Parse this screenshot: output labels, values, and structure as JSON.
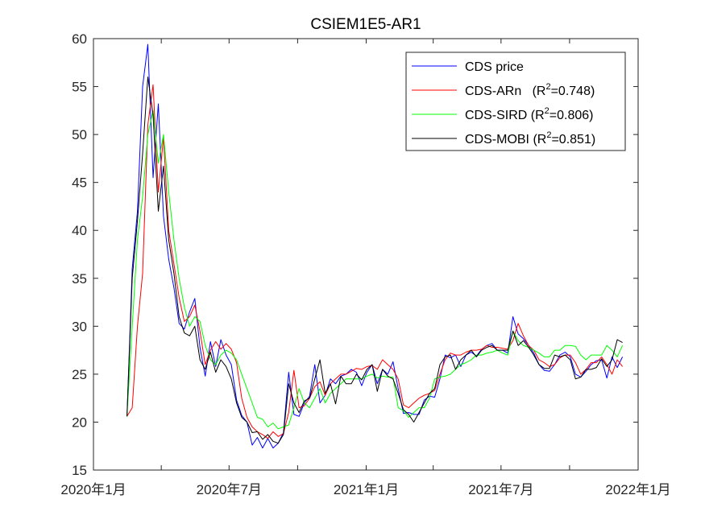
{
  "chart_data": {
    "type": "line",
    "title": "CSIEM1E5-AR1",
    "xlabel": "",
    "ylabel": "",
    "ylim": [
      15,
      60
    ],
    "yticks": [
      15,
      20,
      25,
      30,
      35,
      40,
      45,
      50,
      55,
      60
    ],
    "xlim": [
      "2020-01-01",
      "2022-01-01"
    ],
    "xtick_labels": [
      "2020年1月",
      "2020年7月",
      "2021年1月",
      "2021年7月",
      "2022年1月"
    ],
    "xtick_dates": [
      "2020-01-01",
      "2020-04-01",
      "2020-07-01",
      "2020-10-01",
      "2021-01-01",
      "2021-04-01",
      "2021-07-01",
      "2021-10-01",
      "2022-01-01"
    ],
    "grid": false,
    "legend_position": "top-right",
    "x": [
      "2020-02-15",
      "2020-02-22",
      "2020-02-29",
      "2020-03-07",
      "2020-03-14",
      "2020-03-21",
      "2020-03-28",
      "2020-04-04",
      "2020-04-11",
      "2020-04-18",
      "2020-04-25",
      "2020-05-02",
      "2020-05-09",
      "2020-05-16",
      "2020-05-23",
      "2020-05-30",
      "2020-06-06",
      "2020-06-13",
      "2020-06-20",
      "2020-06-27",
      "2020-07-04",
      "2020-07-11",
      "2020-07-18",
      "2020-07-25",
      "2020-08-01",
      "2020-08-08",
      "2020-08-15",
      "2020-08-22",
      "2020-08-29",
      "2020-09-05",
      "2020-09-12",
      "2020-09-19",
      "2020-09-26",
      "2020-10-03",
      "2020-10-10",
      "2020-10-17",
      "2020-10-24",
      "2020-10-31",
      "2020-11-07",
      "2020-11-14",
      "2020-11-21",
      "2020-11-28",
      "2020-12-05",
      "2020-12-12",
      "2020-12-19",
      "2020-12-26",
      "2021-01-02",
      "2021-01-09",
      "2021-01-16",
      "2021-01-23",
      "2021-01-30",
      "2021-02-06",
      "2021-02-13",
      "2021-02-20",
      "2021-02-27",
      "2021-03-06",
      "2021-03-13",
      "2021-03-20",
      "2021-03-27",
      "2021-04-03",
      "2021-04-10",
      "2021-04-17",
      "2021-04-24",
      "2021-05-01",
      "2021-05-08",
      "2021-05-15",
      "2021-05-22",
      "2021-05-29",
      "2021-06-05",
      "2021-06-12",
      "2021-06-19",
      "2021-06-26",
      "2021-07-03",
      "2021-07-10",
      "2021-07-17",
      "2021-07-24",
      "2021-07-31",
      "2021-08-07",
      "2021-08-14",
      "2021-08-21",
      "2021-08-28",
      "2021-09-04",
      "2021-09-11",
      "2021-09-18",
      "2021-09-25",
      "2021-10-02",
      "2021-10-09",
      "2021-10-16",
      "2021-10-23",
      "2021-10-30",
      "2021-11-06",
      "2021-11-13",
      "2021-11-20",
      "2021-11-27",
      "2021-12-04",
      "2021-12-11"
    ],
    "series": [
      {
        "name": "CDS price",
        "color": "#0000ff",
        "values": [
          20.6,
          36.0,
          42.0,
          55.0,
          59.4,
          45.5,
          53.2,
          41.5,
          37.0,
          34.0,
          30.3,
          29.7,
          31.5,
          32.9,
          27.8,
          24.8,
          28.4,
          25.8,
          28.6,
          27.0,
          26.0,
          22.3,
          20.7,
          20.0,
          17.6,
          18.4,
          17.3,
          18.3,
          17.3,
          17.8,
          18.9,
          25.2,
          20.8,
          20.6,
          22.0,
          22.7,
          26.0,
          22.0,
          22.8,
          24.5,
          24.0,
          24.8,
          25.0,
          25.5,
          25.2,
          23.8,
          25.2,
          26.0,
          24.0,
          25.5,
          25.0,
          26.3,
          23.5,
          20.9,
          21.0,
          20.8,
          20.8,
          22.3,
          22.7,
          22.6,
          24.5,
          27.0,
          26.7,
          27.0,
          25.8,
          27.0,
          27.3,
          26.9,
          27.6,
          28.0,
          28.2,
          27.5,
          27.5,
          27.2,
          31.0,
          29.2,
          28.7,
          28.0,
          27.2,
          26.0,
          25.4,
          25.3,
          26.0,
          27.0,
          27.3,
          26.8,
          25.0,
          24.7,
          25.3,
          26.0,
          26.4,
          26.5,
          24.6,
          26.8,
          25.7,
          26.8
        ]
      },
      {
        "name": "CDS-ARn",
        "color": "#ff0000",
        "values": [
          20.6,
          21.5,
          30.0,
          35.5,
          51.0,
          55.2,
          44.0,
          49.7,
          40.0,
          36.5,
          33.0,
          30.5,
          31.0,
          32.2,
          29.5,
          26.0,
          27.5,
          28.4,
          27.6,
          28.2,
          27.6,
          26.2,
          22.5,
          20.5,
          19.5,
          19.0,
          18.7,
          18.3,
          19.0,
          18.5,
          18.8,
          21.0,
          25.4,
          21.5,
          21.7,
          22.5,
          23.7,
          24.2,
          22.8,
          24.0,
          24.5,
          25.0,
          25.0,
          25.3,
          25.6,
          25.5,
          25.8,
          25.9,
          25.5,
          26.5,
          26.0,
          25.5,
          24.5,
          21.8,
          21.5,
          22.0,
          22.5,
          22.8,
          23.0,
          23.3,
          25.0,
          26.5,
          27.2,
          27.0,
          27.0,
          27.3,
          27.5,
          27.5,
          27.6,
          28.0,
          27.8,
          27.8,
          27.7,
          27.6,
          28.5,
          30.3,
          29.0,
          28.0,
          27.5,
          26.5,
          26.2,
          25.8,
          26.0,
          26.7,
          27.0,
          27.0,
          26.2,
          25.0,
          25.5,
          26.2,
          26.2,
          26.8,
          26.0,
          25.0,
          26.5,
          25.8
        ]
      },
      {
        "name": "CDS-SIRD",
        "color": "#00ff00",
        "values": [
          20.6,
          30.0,
          39.0,
          43.5,
          50.0,
          52.5,
          47.0,
          50.0,
          44.0,
          39.0,
          35.0,
          32.0,
          30.0,
          31.0,
          30.5,
          28.0,
          26.5,
          26.0,
          27.0,
          27.5,
          27.2,
          26.5,
          25.0,
          23.5,
          22.0,
          20.5,
          20.3,
          19.5,
          19.9,
          19.3,
          19.5,
          19.7,
          21.5,
          23.5,
          22.0,
          21.5,
          22.5,
          23.5,
          22.0,
          23.0,
          23.5,
          24.0,
          24.5,
          24.5,
          24.5,
          24.5,
          24.8,
          25.0,
          24.6,
          24.8,
          24.7,
          24.7,
          21.5,
          21.2,
          20.5,
          21.0,
          21.5,
          21.5,
          22.5,
          24.5,
          24.7,
          24.8,
          25.0,
          25.5,
          26.0,
          26.2,
          26.5,
          27.0,
          27.0,
          27.2,
          27.3,
          27.5,
          27.2,
          27.0,
          29.5,
          28.5,
          28.0,
          27.8,
          27.5,
          27.2,
          26.8,
          26.8,
          27.5,
          27.5,
          28.0,
          28.0,
          27.9,
          27.0,
          26.5,
          27.0,
          27.0,
          27.0,
          28.0,
          27.5,
          26.8,
          28.0
        ]
      },
      {
        "name": "CDS-MOBI",
        "color": "#000000",
        "values": [
          20.6,
          35.0,
          41.0,
          48.0,
          56.0,
          52.0,
          42.0,
          46.7,
          39.0,
          35.5,
          31.0,
          29.3,
          29.0,
          30.0,
          26.5,
          25.5,
          27.3,
          25.2,
          26.5,
          25.8,
          24.5,
          22.0,
          20.5,
          20.0,
          18.9,
          19.0,
          18.2,
          18.7,
          18.0,
          17.8,
          18.7,
          24.0,
          22.0,
          21.0,
          22.2,
          22.5,
          24.5,
          26.5,
          23.0,
          24.0,
          21.9,
          24.8,
          24.0,
          24.0,
          25.0,
          24.4,
          25.5,
          26.0,
          23.2,
          25.5,
          24.8,
          24.5,
          23.0,
          21.3,
          20.8,
          20.0,
          21.0,
          22.0,
          23.0,
          23.5,
          26.0,
          26.8,
          27.0,
          25.5,
          26.5,
          27.0,
          27.5,
          26.8,
          27.5,
          27.8,
          28.0,
          27.5,
          27.5,
          27.5,
          29.5,
          28.0,
          28.5,
          27.8,
          27.0,
          26.0,
          25.6,
          25.6,
          27.0,
          26.8,
          27.0,
          26.5,
          24.5,
          24.7,
          25.5,
          25.5,
          25.7,
          26.6,
          25.8,
          26.5,
          28.6,
          28.3
        ]
      }
    ],
    "legend": [
      {
        "label": "CDS price",
        "color": "#0000ff"
      },
      {
        "label": "CDS-ARn",
        "r2": "0.748",
        "color": "#ff0000"
      },
      {
        "label": "CDS-SIRD",
        "r2": "0.806",
        "color": "#00ff00"
      },
      {
        "label": "CDS-MOBI",
        "r2": "0.851",
        "color": "#000000"
      }
    ]
  }
}
